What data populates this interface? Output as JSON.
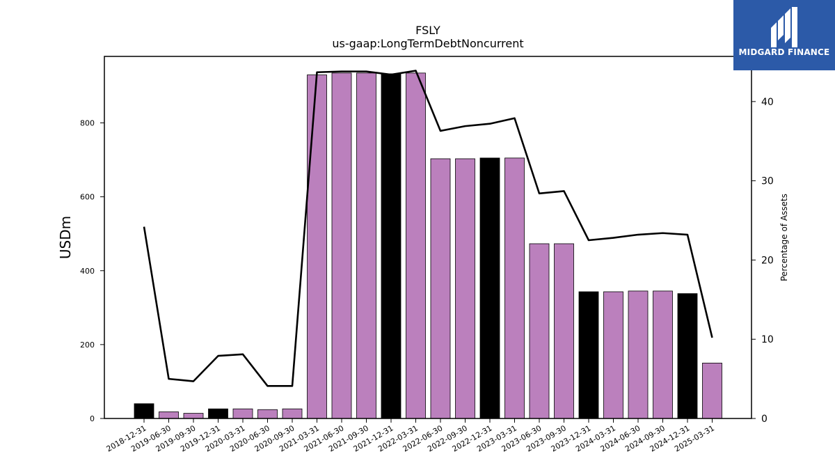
{
  "chart_data": {
    "type": "bar",
    "title": "FSLY",
    "subtitle": "us-gaap:LongTermDebtNoncurrent",
    "ylabel": "USDm",
    "y2label": "Percentage of Assets",
    "ylim": [
      0,
      980
    ],
    "y2lim": [
      0,
      45.7
    ],
    "yticks": [
      0,
      200,
      400,
      600,
      800
    ],
    "y2ticks": [
      0,
      10,
      20,
      30,
      40
    ],
    "categories": [
      "2018-12-31",
      "2019-06-30",
      "2019-09-30",
      "2019-12-31",
      "2020-03-31",
      "2020-06-30",
      "2020-09-30",
      "2021-03-31",
      "2021-06-30",
      "2021-09-30",
      "2021-12-31",
      "2022-03-31",
      "2022-06-30",
      "2022-09-30",
      "2022-12-31",
      "2023-03-31",
      "2023-06-30",
      "2023-09-30",
      "2023-12-31",
      "2024-03-31",
      "2024-06-30",
      "2024-09-30",
      "2024-12-31",
      "2025-03-31"
    ],
    "series": [
      {
        "kind": "bar",
        "values": [
          40,
          18,
          14,
          26,
          26,
          24,
          26,
          930,
          935,
          935,
          933,
          935,
          703,
          703,
          705,
          705,
          473,
          473,
          343,
          343,
          345,
          345,
          338,
          150
        ],
        "highlight_fiscal_year_end": [
          true,
          false,
          false,
          true,
          false,
          false,
          false,
          false,
          false,
          false,
          true,
          false,
          false,
          false,
          true,
          false,
          false,
          false,
          true,
          false,
          false,
          false,
          true,
          false
        ],
        "color": "#bb80bd",
        "highlight_color": "#000000"
      },
      {
        "kind": "line",
        "axis": "right",
        "values": [
          24.2,
          5.0,
          4.7,
          7.9,
          8.1,
          4.1,
          4.1,
          43.7,
          43.8,
          43.8,
          43.4,
          43.9,
          36.3,
          36.9,
          37.2,
          37.9,
          28.4,
          28.7,
          22.5,
          22.8,
          23.2,
          23.4,
          23.2,
          10.2
        ],
        "color": "#000000"
      }
    ]
  },
  "logo": {
    "text": "MIDGARD FINANCE"
  }
}
